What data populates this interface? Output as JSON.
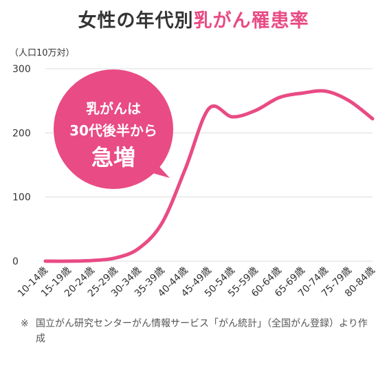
{
  "header": {
    "title_prefix": "女性の年代別",
    "title_highlight": "乳がん罹患率",
    "unit": "（人口10万対）"
  },
  "callout": {
    "line1": "乳がんは",
    "line2": "30代後半から",
    "line3": "急増"
  },
  "note": {
    "mark": "※",
    "text": "国立がん研究センターがん情報サービス「がん統計」（全国がん登録）より作成"
  },
  "colors": {
    "accent": "#e94b84",
    "grid": "#dcdcdc",
    "text": "#333333"
  },
  "chart_data": {
    "type": "line",
    "categories": [
      "10-14歳",
      "15-19歳",
      "20-24歳",
      "25-29歳",
      "30-34歳",
      "35-39歳",
      "40-44歳",
      "45-49歳",
      "50-54歳",
      "55-59歳",
      "60-64歳",
      "65-69歳",
      "70-74歳",
      "75-79歳",
      "80-84歳"
    ],
    "series": [
      {
        "values": [
          0,
          0,
          1,
          5,
          20,
          60,
          145,
          238,
          225,
          235,
          255,
          262,
          265,
          250,
          222
        ]
      }
    ],
    "yticks": [
      0,
      100,
      200,
      300
    ],
    "ylim": [
      0,
      300
    ],
    "grid": true,
    "legend": "none"
  }
}
